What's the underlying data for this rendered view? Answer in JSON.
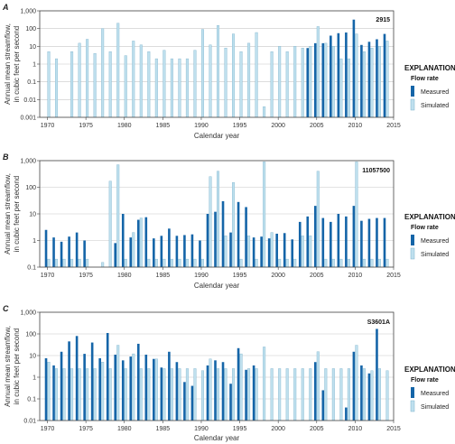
{
  "colors": {
    "measured": "#1565a8",
    "simulated": "#bfe0ee",
    "simulated_stroke": "#7fb3cc",
    "grid": "#c8c8c8",
    "axis": "#444444"
  },
  "legend": {
    "title": "EXPLANATION",
    "subtitle": "Flow rate",
    "measured": "Measured",
    "simulated": "Simulated"
  },
  "ylabel_line1": "Annual mean streamflow,",
  "ylabel_line2": "in cubic feet per second",
  "xlabel": "Calendar year",
  "x_ticks": [
    "1970",
    "1975",
    "1980",
    "1985",
    "1990",
    "1995",
    "2000",
    "2005",
    "2010",
    "2015"
  ],
  "chart_data": [
    {
      "type": "bar",
      "panel_letter": "A",
      "station": "2915",
      "scale": "log",
      "ylim": [
        0.001,
        1000
      ],
      "y_ticks": [
        "0.001",
        "0.01",
        "0.1",
        "1",
        "10",
        "100",
        "1,000"
      ],
      "xlim": [
        1969,
        2015
      ],
      "years": [
        1970,
        1971,
        1972,
        1973,
        1974,
        1975,
        1976,
        1977,
        1978,
        1979,
        1980,
        1981,
        1982,
        1983,
        1984,
        1985,
        1986,
        1987,
        1988,
        1989,
        1990,
        1991,
        1992,
        1993,
        1994,
        1995,
        1996,
        1997,
        1998,
        1999,
        2000,
        2001,
        2002,
        2003,
        2004,
        2005,
        2006,
        2007,
        2008,
        2009,
        2010,
        2011,
        2012,
        2013,
        2014
      ],
      "series": [
        {
          "name": "Measured",
          "values": [
            null,
            null,
            null,
            null,
            null,
            null,
            null,
            null,
            null,
            null,
            null,
            null,
            null,
            null,
            null,
            null,
            null,
            null,
            null,
            null,
            null,
            null,
            null,
            null,
            null,
            null,
            null,
            null,
            null,
            null,
            null,
            null,
            null,
            null,
            8,
            15,
            15,
            40,
            55,
            60,
            320,
            12,
            18,
            25,
            50
          ]
        },
        {
          "name": "Simulated",
          "values": [
            5,
            2,
            null,
            5,
            15,
            25,
            4,
            100,
            5,
            200,
            3,
            20,
            12,
            5,
            2,
            6,
            2,
            2,
            2,
            6,
            90,
            12,
            150,
            8,
            50,
            5,
            15,
            60,
            0.004,
            5,
            10,
            5,
            10,
            8,
            10,
            130,
            15,
            10,
            2,
            2,
            50,
            5,
            8,
            10,
            20
          ]
        }
      ]
    },
    {
      "type": "bar",
      "panel_letter": "B",
      "station": "11057500",
      "scale": "log",
      "ylim": [
        0.1,
        1000
      ],
      "y_ticks": [
        "0.1",
        "1",
        "10",
        "100",
        "1,000"
      ],
      "xlim": [
        1969,
        2015
      ],
      "years": [
        1970,
        1971,
        1972,
        1973,
        1974,
        1975,
        1976,
        1977,
        1978,
        1979,
        1980,
        1981,
        1982,
        1983,
        1984,
        1985,
        1986,
        1987,
        1988,
        1989,
        1990,
        1991,
        1992,
        1993,
        1994,
        1995,
        1996,
        1997,
        1998,
        1999,
        2000,
        2001,
        2002,
        2003,
        2004,
        2005,
        2006,
        2007,
        2008,
        2009,
        2010,
        2011,
        2012,
        2013,
        2014
      ],
      "series": [
        {
          "name": "Measured",
          "values": [
            2.5,
            1.3,
            0.9,
            1.4,
            2,
            1,
            null,
            null,
            null,
            0.8,
            10,
            1.3,
            6,
            7.5,
            1.2,
            1.5,
            2.8,
            1.5,
            1.6,
            1.7,
            1,
            10,
            12,
            30,
            2,
            28,
            18,
            1.3,
            1.4,
            1.2,
            1.8,
            1.9,
            1.1,
            5,
            8,
            20,
            7,
            5,
            10,
            8,
            20,
            5.5,
            6.5,
            7,
            7
          ]
        },
        {
          "name": "Simulated",
          "values": [
            0.2,
            0.2,
            0.2,
            0.2,
            0.2,
            0.2,
            null,
            0.15,
            170,
            700,
            0.2,
            2,
            7,
            0.2,
            0.2,
            0.2,
            0.2,
            0.2,
            0.2,
            0.2,
            0.2,
            250,
            400,
            1.5,
            150,
            0.2,
            1.5,
            0.2,
            900,
            2,
            0.2,
            0.2,
            0.2,
            1.5,
            1.5,
            400,
            0.2,
            0.2,
            0.2,
            0.2,
            900,
            0.2,
            0.2,
            0.2,
            0.2
          ]
        }
      ]
    },
    {
      "type": "bar",
      "panel_letter": "C",
      "station": "S3601A",
      "scale": "log",
      "ylim": [
        0.01,
        1000
      ],
      "y_ticks": [
        "0.01",
        "0.1",
        "1",
        "10",
        "100",
        "1,000"
      ],
      "xlim": [
        1969,
        2015
      ],
      "years": [
        1970,
        1971,
        1972,
        1973,
        1974,
        1975,
        1976,
        1977,
        1978,
        1979,
        1980,
        1981,
        1982,
        1983,
        1984,
        1985,
        1986,
        1987,
        1988,
        1989,
        1990,
        1991,
        1992,
        1993,
        1994,
        1995,
        1996,
        1997,
        1998,
        1999,
        2000,
        2001,
        2002,
        2003,
        2004,
        2005,
        2006,
        2007,
        2008,
        2009,
        2010,
        2011,
        2012,
        2013,
        2014
      ],
      "series": [
        {
          "name": "Measured",
          "values": [
            7.5,
            3.5,
            15,
            45,
            80,
            12,
            40,
            7.5,
            110,
            11,
            6,
            9,
            35,
            11,
            7,
            2.8,
            15,
            5,
            0.6,
            0.4,
            null,
            3.5,
            6,
            5,
            0.5,
            22,
            2.2,
            3.5,
            null,
            null,
            null,
            null,
            null,
            null,
            null,
            5,
            0.25,
            null,
            null,
            0.04,
            15,
            3.5,
            1.5,
            170,
            null
          ]
        },
        {
          "name": "Simulated",
          "values": [
            5,
            2.5,
            2.5,
            2.5,
            2.5,
            2.5,
            2.5,
            5,
            2.5,
            30,
            2.5,
            12,
            2.5,
            2.5,
            7,
            2.5,
            2.5,
            2.5,
            2.5,
            2.5,
            2,
            7,
            2.5,
            2.5,
            2.5,
            12,
            2.5,
            2.5,
            25,
            2.5,
            2.5,
            2.5,
            2.5,
            2.5,
            2.5,
            15,
            2.5,
            2.5,
            2.5,
            2.5,
            30,
            2.5,
            2,
            2.5,
            2
          ]
        }
      ]
    }
  ]
}
